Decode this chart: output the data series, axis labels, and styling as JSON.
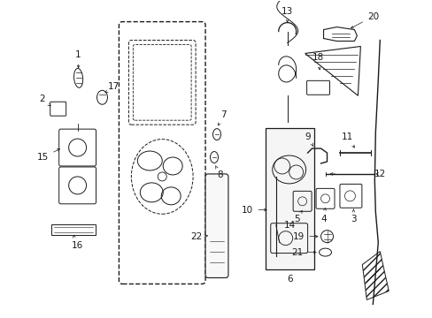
{
  "bg_color": "#ffffff",
  "line_color": "#1a1a1a",
  "figsize": [
    4.89,
    3.6
  ],
  "dpi": 100,
  "label_fontsize": 7.5
}
